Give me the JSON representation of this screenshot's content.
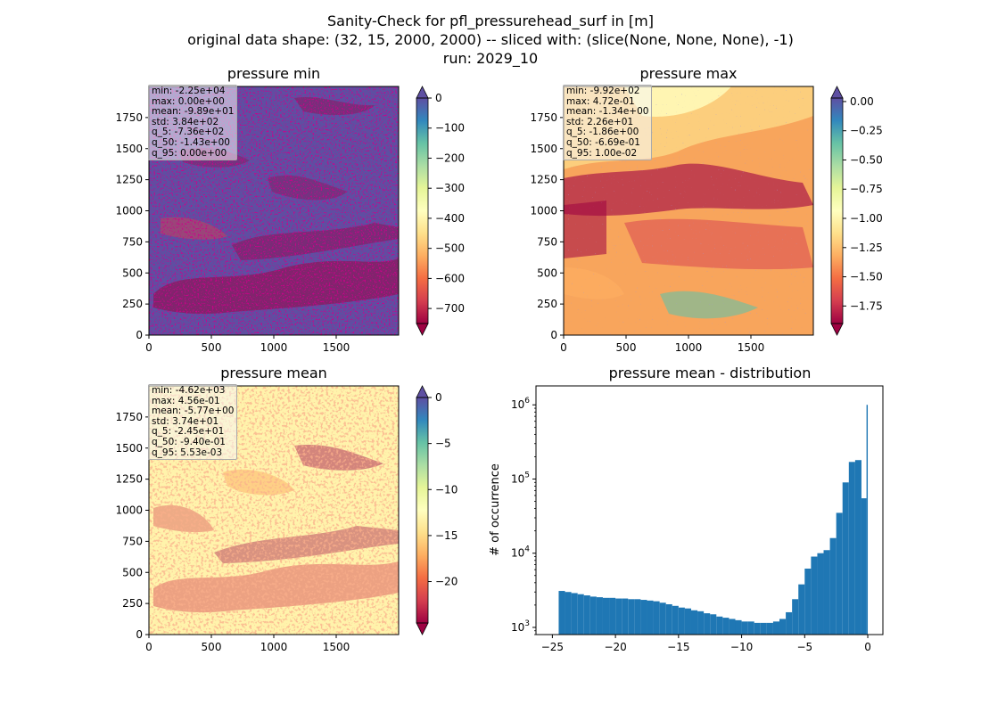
{
  "figure": {
    "title_lines": [
      "Sanity-Check for pfl_pressurehead_surf in [m]",
      "original data shape: (32, 15, 2000, 2000) -- sliced with: (slice(None, None, None), -1)",
      "run: 2029_10"
    ]
  },
  "panels": {
    "min": {
      "title": "pressure min",
      "stats": [
        "min: -2.25e+04",
        "max: 0.00e+00",
        "mean: -9.89e+01",
        "std: 3.84e+02",
        "q_5: -7.36e+02",
        "q_50: -1.43e+00",
        "q_95: 0.00e+00"
      ],
      "colorbar_ticks": [
        "0",
        "−100",
        "−200",
        "−300",
        "−400",
        "−500",
        "−600",
        "−700"
      ]
    },
    "max": {
      "title": "pressure max",
      "stats": [
        "min: -9.92e+02",
        "max: 4.72e-01",
        "mean: -1.34e+00",
        "std: 2.26e+01",
        "q_5: -1.86e+00",
        "q_50: -6.69e-01",
        "q_95: 1.00e-02"
      ],
      "colorbar_ticks": [
        "0.00",
        "−0.25",
        "−0.50",
        "−0.75",
        "−1.00",
        "−1.25",
        "−1.50",
        "−1.75"
      ]
    },
    "mean": {
      "title": "pressure mean",
      "stats": [
        "min: -4.62e+03",
        "max: 4.56e-01",
        "mean: -5.77e+00",
        "std: 3.74e+01",
        "q_5: -2.45e+01",
        "q_50: -9.40e-01",
        "q_95: 5.53e-03"
      ],
      "colorbar_ticks": [
        "0",
        "−5",
        "−10",
        "−15",
        "−20"
      ]
    },
    "map_axes": {
      "x_ticks": [
        "0",
        "500",
        "1000",
        "1500"
      ],
      "y_ticks": [
        "0",
        "250",
        "500",
        "750",
        "1000",
        "1250",
        "1500",
        "1750"
      ]
    },
    "hist": {
      "title": "pressure mean - distribution",
      "ylabel": "# of occurrence",
      "x_ticks": [
        "−25",
        "−20",
        "−15",
        "−10",
        "−5",
        "0"
      ]
    }
  },
  "colors": {
    "spectral": [
      "#9e0142",
      "#d53e4f",
      "#f46d43",
      "#fdae61",
      "#fee08b",
      "#ffffbf",
      "#e6f598",
      "#abdda4",
      "#66c2a5",
      "#3288bd",
      "#5e4fa2"
    ],
    "hist_bar": "#1f77b4"
  },
  "chart_data": [
    {
      "type": "heatmap",
      "title": "pressure min",
      "x_ticks": [
        0,
        500,
        1000,
        1500
      ],
      "y_ticks": [
        0,
        250,
        500,
        750,
        1000,
        1250,
        1500,
        1750
      ],
      "xlim": [
        0,
        2000
      ],
      "ylim": [
        0,
        2000
      ],
      "colorbar": {
        "cmap": "Spectral",
        "ticks": [
          0,
          -100,
          -200,
          -300,
          -400,
          -500,
          -600,
          -700
        ],
        "range": [
          -750,
          0
        ]
      }
    },
    {
      "type": "heatmap",
      "title": "pressure max",
      "x_ticks": [
        0,
        500,
        1000,
        1500
      ],
      "y_ticks": [
        0,
        250,
        500,
        750,
        1000,
        1250,
        1500,
        1750
      ],
      "xlim": [
        0,
        2000
      ],
      "ylim": [
        0,
        2000
      ],
      "colorbar": {
        "cmap": "Spectral",
        "ticks": [
          0.0,
          -0.25,
          -0.5,
          -0.75,
          -1.0,
          -1.25,
          -1.5,
          -1.75
        ],
        "range": [
          -1.9,
          0.03
        ]
      }
    },
    {
      "type": "heatmap",
      "title": "pressure mean",
      "x_ticks": [
        0,
        500,
        1000,
        1500
      ],
      "y_ticks": [
        0,
        250,
        500,
        750,
        1000,
        1250,
        1500,
        1750
      ],
      "xlim": [
        0,
        2000
      ],
      "ylim": [
        0,
        2000
      ],
      "colorbar": {
        "cmap": "Spectral",
        "ticks": [
          0,
          -5,
          -10,
          -15,
          -20
        ],
        "range": [
          -24.5,
          0
        ]
      }
    },
    {
      "type": "bar",
      "title": "pressure mean - distribution",
      "ylabel": "# of occurrence",
      "x_ticks": [
        -25,
        -20,
        -15,
        -10,
        -5,
        0
      ],
      "xlim": [
        -26.3,
        1.2
      ],
      "yscale": "log",
      "ylim": [
        800,
        1800000
      ],
      "bins": [
        {
          "x0": -24.5,
          "x1": -24.0,
          "count": 3100
        },
        {
          "x0": -24.0,
          "x1": -23.5,
          "count": 3000
        },
        {
          "x0": -23.5,
          "x1": -23.0,
          "count": 2900
        },
        {
          "x0": -23.0,
          "x1": -22.5,
          "count": 2800
        },
        {
          "x0": -22.5,
          "x1": -22.0,
          "count": 2700
        },
        {
          "x0": -22.0,
          "x1": -21.5,
          "count": 2600
        },
        {
          "x0": -21.5,
          "x1": -21.0,
          "count": 2550
        },
        {
          "x0": -21.0,
          "x1": -20.5,
          "count": 2500
        },
        {
          "x0": -20.5,
          "x1": -20.0,
          "count": 2500
        },
        {
          "x0": -20.0,
          "x1": -19.5,
          "count": 2450
        },
        {
          "x0": -19.5,
          "x1": -19.0,
          "count": 2450
        },
        {
          "x0": -19.0,
          "x1": -18.5,
          "count": 2400
        },
        {
          "x0": -18.5,
          "x1": -18.0,
          "count": 2400
        },
        {
          "x0": -18.0,
          "x1": -17.5,
          "count": 2350
        },
        {
          "x0": -17.5,
          "x1": -17.0,
          "count": 2300
        },
        {
          "x0": -17.0,
          "x1": -16.5,
          "count": 2250
        },
        {
          "x0": -16.5,
          "x1": -16.0,
          "count": 2150
        },
        {
          "x0": -16.0,
          "x1": -15.5,
          "count": 2050
        },
        {
          "x0": -15.5,
          "x1": -15.0,
          "count": 1950
        },
        {
          "x0": -15.0,
          "x1": -14.5,
          "count": 1850
        },
        {
          "x0": -14.5,
          "x1": -14.0,
          "count": 1800
        },
        {
          "x0": -14.0,
          "x1": -13.5,
          "count": 1700
        },
        {
          "x0": -13.5,
          "x1": -13.0,
          "count": 1650
        },
        {
          "x0": -13.0,
          "x1": -12.5,
          "count": 1550
        },
        {
          "x0": -12.5,
          "x1": -12.0,
          "count": 1500
        },
        {
          "x0": -12.0,
          "x1": -11.5,
          "count": 1400
        },
        {
          "x0": -11.5,
          "x1": -11.0,
          "count": 1350
        },
        {
          "x0": -11.0,
          "x1": -10.5,
          "count": 1300
        },
        {
          "x0": -10.5,
          "x1": -10.0,
          "count": 1250
        },
        {
          "x0": -10.0,
          "x1": -9.5,
          "count": 1200
        },
        {
          "x0": -9.5,
          "x1": -9.0,
          "count": 1200
        },
        {
          "x0": -9.0,
          "x1": -8.5,
          "count": 1150
        },
        {
          "x0": -8.5,
          "x1": -8.0,
          "count": 1150
        },
        {
          "x0": -8.0,
          "x1": -7.5,
          "count": 1150
        },
        {
          "x0": -7.5,
          "x1": -7.0,
          "count": 1200
        },
        {
          "x0": -7.0,
          "x1": -6.5,
          "count": 1300
        },
        {
          "x0": -6.5,
          "x1": -6.0,
          "count": 1600
        },
        {
          "x0": -6.0,
          "x1": -5.5,
          "count": 2400
        },
        {
          "x0": -5.5,
          "x1": -5.0,
          "count": 3800
        },
        {
          "x0": -5.0,
          "x1": -4.5,
          "count": 6200
        },
        {
          "x0": -4.5,
          "x1": -4.0,
          "count": 9000
        },
        {
          "x0": -4.0,
          "x1": -3.5,
          "count": 10000
        },
        {
          "x0": -3.5,
          "x1": -3.0,
          "count": 11000
        },
        {
          "x0": -3.0,
          "x1": -2.5,
          "count": 16000
        },
        {
          "x0": -2.5,
          "x1": -2.0,
          "count": 35000
        },
        {
          "x0": -2.0,
          "x1": -1.5,
          "count": 90000
        },
        {
          "x0": -1.5,
          "x1": -1.0,
          "count": 170000
        },
        {
          "x0": -1.0,
          "x1": -0.5,
          "count": 180000
        },
        {
          "x0": -0.5,
          "x1": -0.1,
          "count": 55000
        },
        {
          "x0": -0.1,
          "x1": 0.0,
          "count": 1000000
        }
      ]
    }
  ]
}
